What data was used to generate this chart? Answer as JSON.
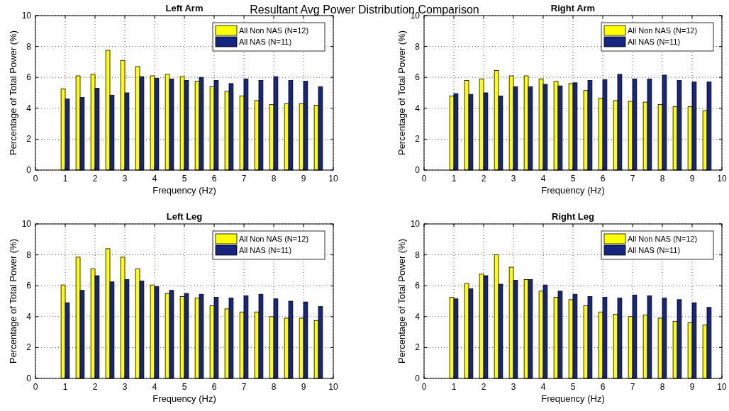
{
  "chart_data": [
    {
      "type": "bar",
      "title": "Left Arm",
      "annotations": [
        "Resultant Avg Power Distribution Comparison"
      ],
      "xlabel": "Frequency (Hz)",
      "ylabel": "Percentage of Total Power (%)",
      "x": [
        1,
        1.5,
        2,
        2.5,
        3,
        3.5,
        4,
        4.5,
        5,
        5.5,
        6,
        6.5,
        7,
        7.5,
        8,
        8.5,
        9,
        9.5
      ],
      "xlim": [
        0,
        10
      ],
      "xticks": [
        0,
        1,
        2,
        3,
        4,
        5,
        6,
        7,
        8,
        9,
        10
      ],
      "ylim": [
        0,
        10
      ],
      "yticks": [
        0,
        2,
        4,
        6,
        8,
        10
      ],
      "grid": true,
      "legend": "top right",
      "series": [
        {
          "name": "All Non NAS (N=12)",
          "color": "#ffff00",
          "values": [
            5.25,
            6.1,
            6.2,
            7.75,
            7.1,
            6.7,
            6.1,
            6.2,
            6.05,
            5.75,
            5.4,
            5.1,
            4.8,
            4.5,
            4.25,
            4.3,
            4.3,
            4.2
          ]
        },
        {
          "name": "All NAS (N=11)",
          "color": "#16257f",
          "values": [
            4.6,
            4.7,
            5.3,
            4.85,
            5.0,
            6.05,
            5.95,
            5.9,
            5.8,
            6.0,
            5.8,
            5.6,
            5.9,
            5.8,
            6.05,
            5.8,
            5.75,
            5.4
          ]
        }
      ]
    },
    {
      "type": "bar",
      "title": "Right Arm",
      "xlabel": "Frequency (Hz)",
      "ylabel": "Percentage of Total Power (%)",
      "x": [
        1,
        1.5,
        2,
        2.5,
        3,
        3.5,
        4,
        4.5,
        5,
        5.5,
        6,
        6.5,
        7,
        7.5,
        8,
        8.5,
        9,
        9.5
      ],
      "xlim": [
        0,
        10
      ],
      "xticks": [
        0,
        1,
        2,
        3,
        4,
        5,
        6,
        7,
        8,
        9,
        10
      ],
      "ylim": [
        0,
        10
      ],
      "yticks": [
        0,
        2,
        4,
        6,
        8,
        10
      ],
      "grid": true,
      "legend": "top right",
      "series": [
        {
          "name": "All Non NAS (N=12)",
          "color": "#ffff00",
          "values": [
            4.8,
            5.8,
            5.9,
            6.45,
            6.1,
            6.1,
            5.9,
            5.75,
            5.6,
            5.15,
            4.65,
            4.5,
            4.45,
            4.4,
            4.25,
            4.1,
            4.1,
            3.85
          ]
        },
        {
          "name": "All NAS (N=11)",
          "color": "#16257f",
          "values": [
            4.95,
            4.9,
            5.0,
            4.8,
            5.4,
            5.4,
            5.55,
            5.45,
            5.65,
            5.8,
            5.85,
            6.2,
            5.9,
            5.9,
            6.15,
            5.8,
            5.7,
            5.7
          ]
        }
      ]
    },
    {
      "type": "bar",
      "title": "Left Leg",
      "xlabel": "Frequency (Hz)",
      "ylabel": "Percentage of Total Power (%)",
      "x": [
        1,
        1.5,
        2,
        2.5,
        3,
        3.5,
        4,
        4.5,
        5,
        5.5,
        6,
        6.5,
        7,
        7.5,
        8,
        8.5,
        9,
        9.5
      ],
      "xlim": [
        0,
        10
      ],
      "xticks": [
        0,
        1,
        2,
        3,
        4,
        5,
        6,
        7,
        8,
        9,
        10
      ],
      "ylim": [
        0,
        10
      ],
      "yticks": [
        0,
        2,
        4,
        6,
        8,
        10
      ],
      "grid": true,
      "legend": "top right",
      "series": [
        {
          "name": "All Non NAS (N=12)",
          "color": "#ffff00",
          "values": [
            6.05,
            7.85,
            7.1,
            8.4,
            7.85,
            7.1,
            6.05,
            5.5,
            5.3,
            5.2,
            4.7,
            4.5,
            4.3,
            4.3,
            4.0,
            3.9,
            3.9,
            3.75
          ]
        },
        {
          "name": "All NAS (N=11)",
          "color": "#16257f",
          "values": [
            4.9,
            5.7,
            6.65,
            6.25,
            6.4,
            6.3,
            5.95,
            5.7,
            5.5,
            5.45,
            5.25,
            5.2,
            5.35,
            5.45,
            5.15,
            5.0,
            4.95,
            4.65
          ]
        }
      ]
    },
    {
      "type": "bar",
      "title": "Right Leg",
      "xlabel": "Frequency (Hz)",
      "ylabel": "Percentage of Total Power (%)",
      "x": [
        1,
        1.5,
        2,
        2.5,
        3,
        3.5,
        4,
        4.5,
        5,
        5.5,
        6,
        6.5,
        7,
        7.5,
        8,
        8.5,
        9,
        9.5
      ],
      "xlim": [
        0,
        10
      ],
      "xticks": [
        0,
        1,
        2,
        3,
        4,
        5,
        6,
        7,
        8,
        9,
        10
      ],
      "ylim": [
        0,
        10
      ],
      "yticks": [
        0,
        2,
        4,
        6,
        8,
        10
      ],
      "grid": true,
      "legend": "top right",
      "series": [
        {
          "name": "All Non NAS (N=12)",
          "color": "#ffff00",
          "values": [
            5.25,
            6.15,
            6.75,
            8.0,
            7.2,
            6.4,
            5.65,
            5.25,
            5.1,
            4.7,
            4.3,
            4.15,
            4.0,
            4.1,
            3.9,
            3.7,
            3.6,
            3.45
          ]
        },
        {
          "name": "All NAS (N=11)",
          "color": "#16257f",
          "values": [
            5.15,
            5.8,
            6.65,
            6.1,
            6.35,
            6.4,
            6.05,
            5.65,
            5.45,
            5.3,
            5.25,
            5.2,
            5.4,
            5.35,
            5.2,
            5.1,
            4.9,
            4.6
          ]
        }
      ]
    }
  ]
}
